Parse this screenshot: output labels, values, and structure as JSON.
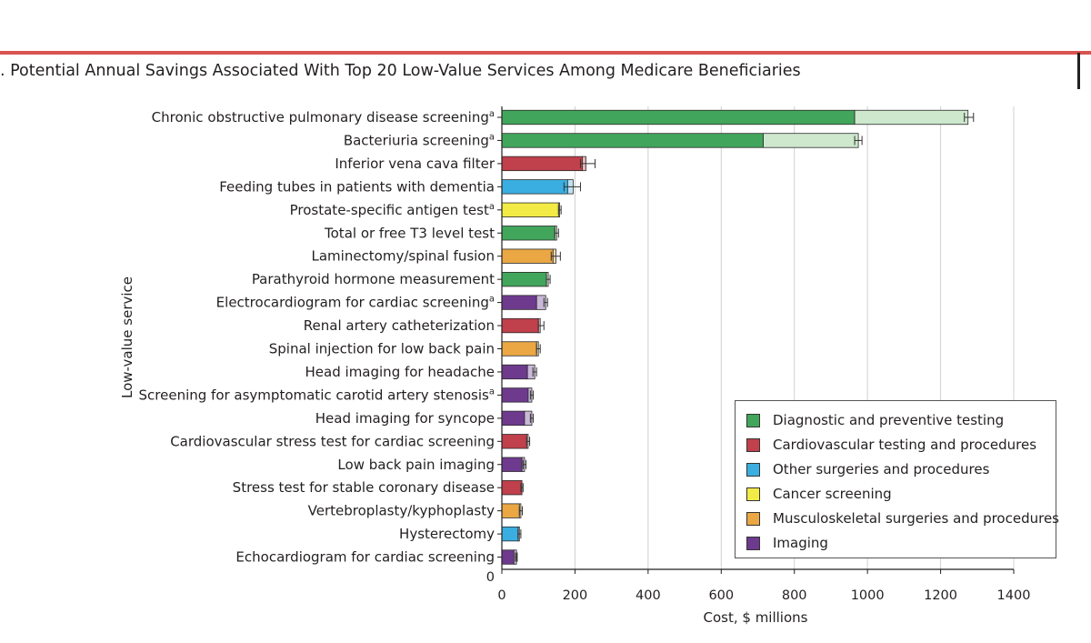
{
  "header": {
    "title": ". Potential Annual Savings Associated With Top 20 Low-Value Services Among Medicare Beneficiaries"
  },
  "chart_data": {
    "type": "bar",
    "orientation": "horizontal",
    "stacked": true,
    "title": ". Potential Annual Savings Associated With Top 20 Low-Value Services Among Medicare Beneficiaries",
    "xlabel": "Cost, $ millions",
    "ylabel": "Low-value service",
    "xlim": [
      0,
      1400
    ],
    "xticks": [
      "0",
      "200",
      "400",
      "600",
      "800",
      "1000",
      "1200",
      "1400"
    ],
    "y_origin_label": "0",
    "grid": "vertical",
    "legend_placement": "bottom-right",
    "categories": [
      {
        "label": "Chronic obstructive pulmonary disease screening",
        "superscript": "a"
      },
      {
        "label": "Bacteriuria screening",
        "superscript": "a"
      },
      {
        "label": "Inferior vena cava filter",
        "superscript": ""
      },
      {
        "label": "Feeding tubes in patients with dementia",
        "superscript": ""
      },
      {
        "label": "Prostate-specific antigen test",
        "superscript": "a"
      },
      {
        "label": "Total or free T3 level test",
        "superscript": ""
      },
      {
        "label": "Laminectomy/spinal fusion",
        "superscript": ""
      },
      {
        "label": "Parathyroid hormone measurement",
        "superscript": ""
      },
      {
        "label": "Electrocardiogram for cardiac screening",
        "superscript": "a"
      },
      {
        "label": "Renal artery catheterization",
        "superscript": ""
      },
      {
        "label": "Spinal injection for low back pain",
        "superscript": ""
      },
      {
        "label": "Head imaging for headache",
        "superscript": ""
      },
      {
        "label": "Screening for asymptomatic carotid artery stenosis",
        "superscript": "a"
      },
      {
        "label": "Head imaging for syncope",
        "superscript": ""
      },
      {
        "label": "Cardiovascular stress test for cardiac screening",
        "superscript": ""
      },
      {
        "label": "Low back pain imaging",
        "superscript": ""
      },
      {
        "label": "Stress test for stable coronary disease",
        "superscript": ""
      },
      {
        "label": "Vertebroplasty/kyphoplasty",
        "superscript": ""
      },
      {
        "label": "Hysterectomy",
        "superscript": ""
      },
      {
        "label": "Echocardiogram for cardiac screening",
        "superscript": ""
      }
    ],
    "series_category_index": [
      0,
      0,
      1,
      2,
      3,
      0,
      4,
      0,
      5,
      1,
      4,
      5,
      5,
      5,
      1,
      5,
      1,
      4,
      2,
      5
    ],
    "lower_values": [
      965,
      715,
      220,
      180,
      155,
      145,
      140,
      122,
      95,
      100,
      95,
      70,
      72,
      62,
      68,
      55,
      55,
      48,
      45,
      33
    ],
    "upper_values": [
      1275,
      975,
      230,
      195,
      158,
      150,
      148,
      127,
      120,
      105,
      100,
      90,
      82,
      82,
      72,
      62,
      55,
      52,
      48,
      40
    ],
    "error_low": [
      1265,
      965,
      215,
      170,
      155,
      145,
      135,
      122,
      115,
      100,
      95,
      85,
      78,
      78,
      68,
      58,
      52,
      48,
      44,
      37
    ],
    "error_high": [
      1290,
      985,
      255,
      215,
      162,
      155,
      160,
      132,
      125,
      115,
      105,
      95,
      86,
      86,
      76,
      66,
      58,
      56,
      52,
      42
    ],
    "legend": [
      {
        "label": "Diagnostic and preventive testing",
        "color": "#41a55b",
        "light_color": "#cde8cd"
      },
      {
        "label": "Cardiovascular testing and procedures",
        "color": "#c0404b",
        "light_color": "#e8b2b6"
      },
      {
        "label": "Other surgeries and procedures",
        "color": "#3aaee0",
        "light_color": "#bfe2f3"
      },
      {
        "label": "Cancer screening",
        "color": "#f2ea45",
        "light_color": "#f8f3b0"
      },
      {
        "label": "Musculoskeletal surgeries and procedures",
        "color": "#eaa744",
        "light_color": "#f5d9ab"
      },
      {
        "label": "Imaging",
        "color": "#6e3a8e",
        "light_color": "#c9b8d8"
      }
    ]
  },
  "colors": {
    "accent_rule": "#d9534f",
    "gridline": "#d0d0d0",
    "text": "#231f20"
  }
}
